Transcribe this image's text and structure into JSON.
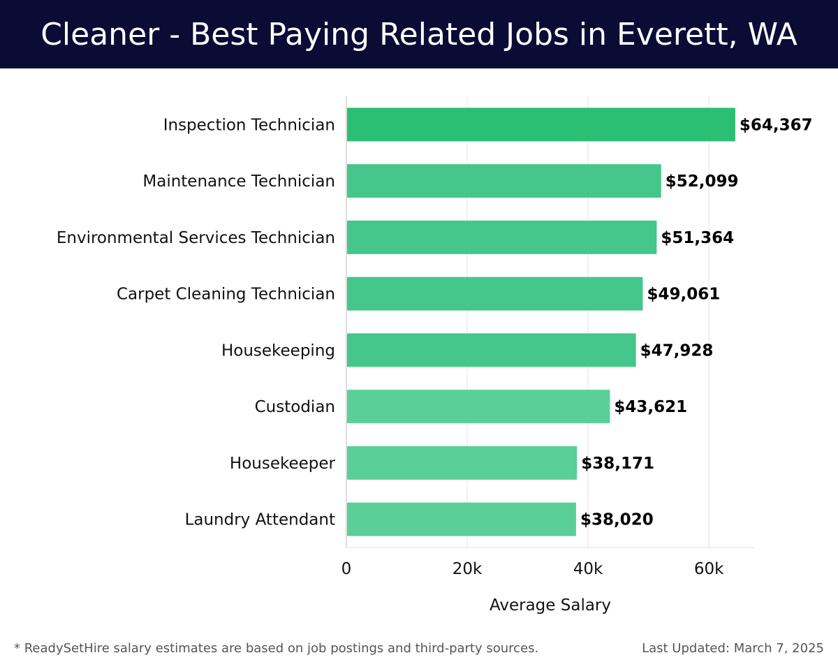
{
  "header": {
    "title": "Cleaner - Best Paying Related Jobs in Everett, WA"
  },
  "footer": {
    "note": "* ReadySetHire salary estimates are based on job postings and third-party sources.",
    "updated": "Last Updated: March 7, 2025"
  },
  "chart_data": {
    "type": "bar",
    "orientation": "horizontal",
    "categories": [
      "Inspection Technician",
      "Maintenance Technician",
      "Environmental Services Technician",
      "Carpet Cleaning Technician",
      "Housekeeping",
      "Custodian",
      "Housekeeper",
      "Laundry Attendant"
    ],
    "values": [
      64367,
      52099,
      51364,
      49061,
      47928,
      43621,
      38171,
      38020
    ],
    "value_labels": [
      "$64,367",
      "$52,099",
      "$51,364",
      "$49,061",
      "$47,928",
      "$43,621",
      "$38,171",
      "$38,020"
    ],
    "xlabel": "Average Salary",
    "ylabel": "",
    "xlim": [
      0,
      67500
    ],
    "xticks": [
      0,
      20000,
      40000,
      60000
    ],
    "xtick_labels": [
      "0",
      "20k",
      "40k",
      "60k"
    ],
    "grid": true,
    "colors": {
      "bar_top": "#2bbf73",
      "bar": "#45c68a",
      "bar_light": "#5bcf98"
    }
  }
}
